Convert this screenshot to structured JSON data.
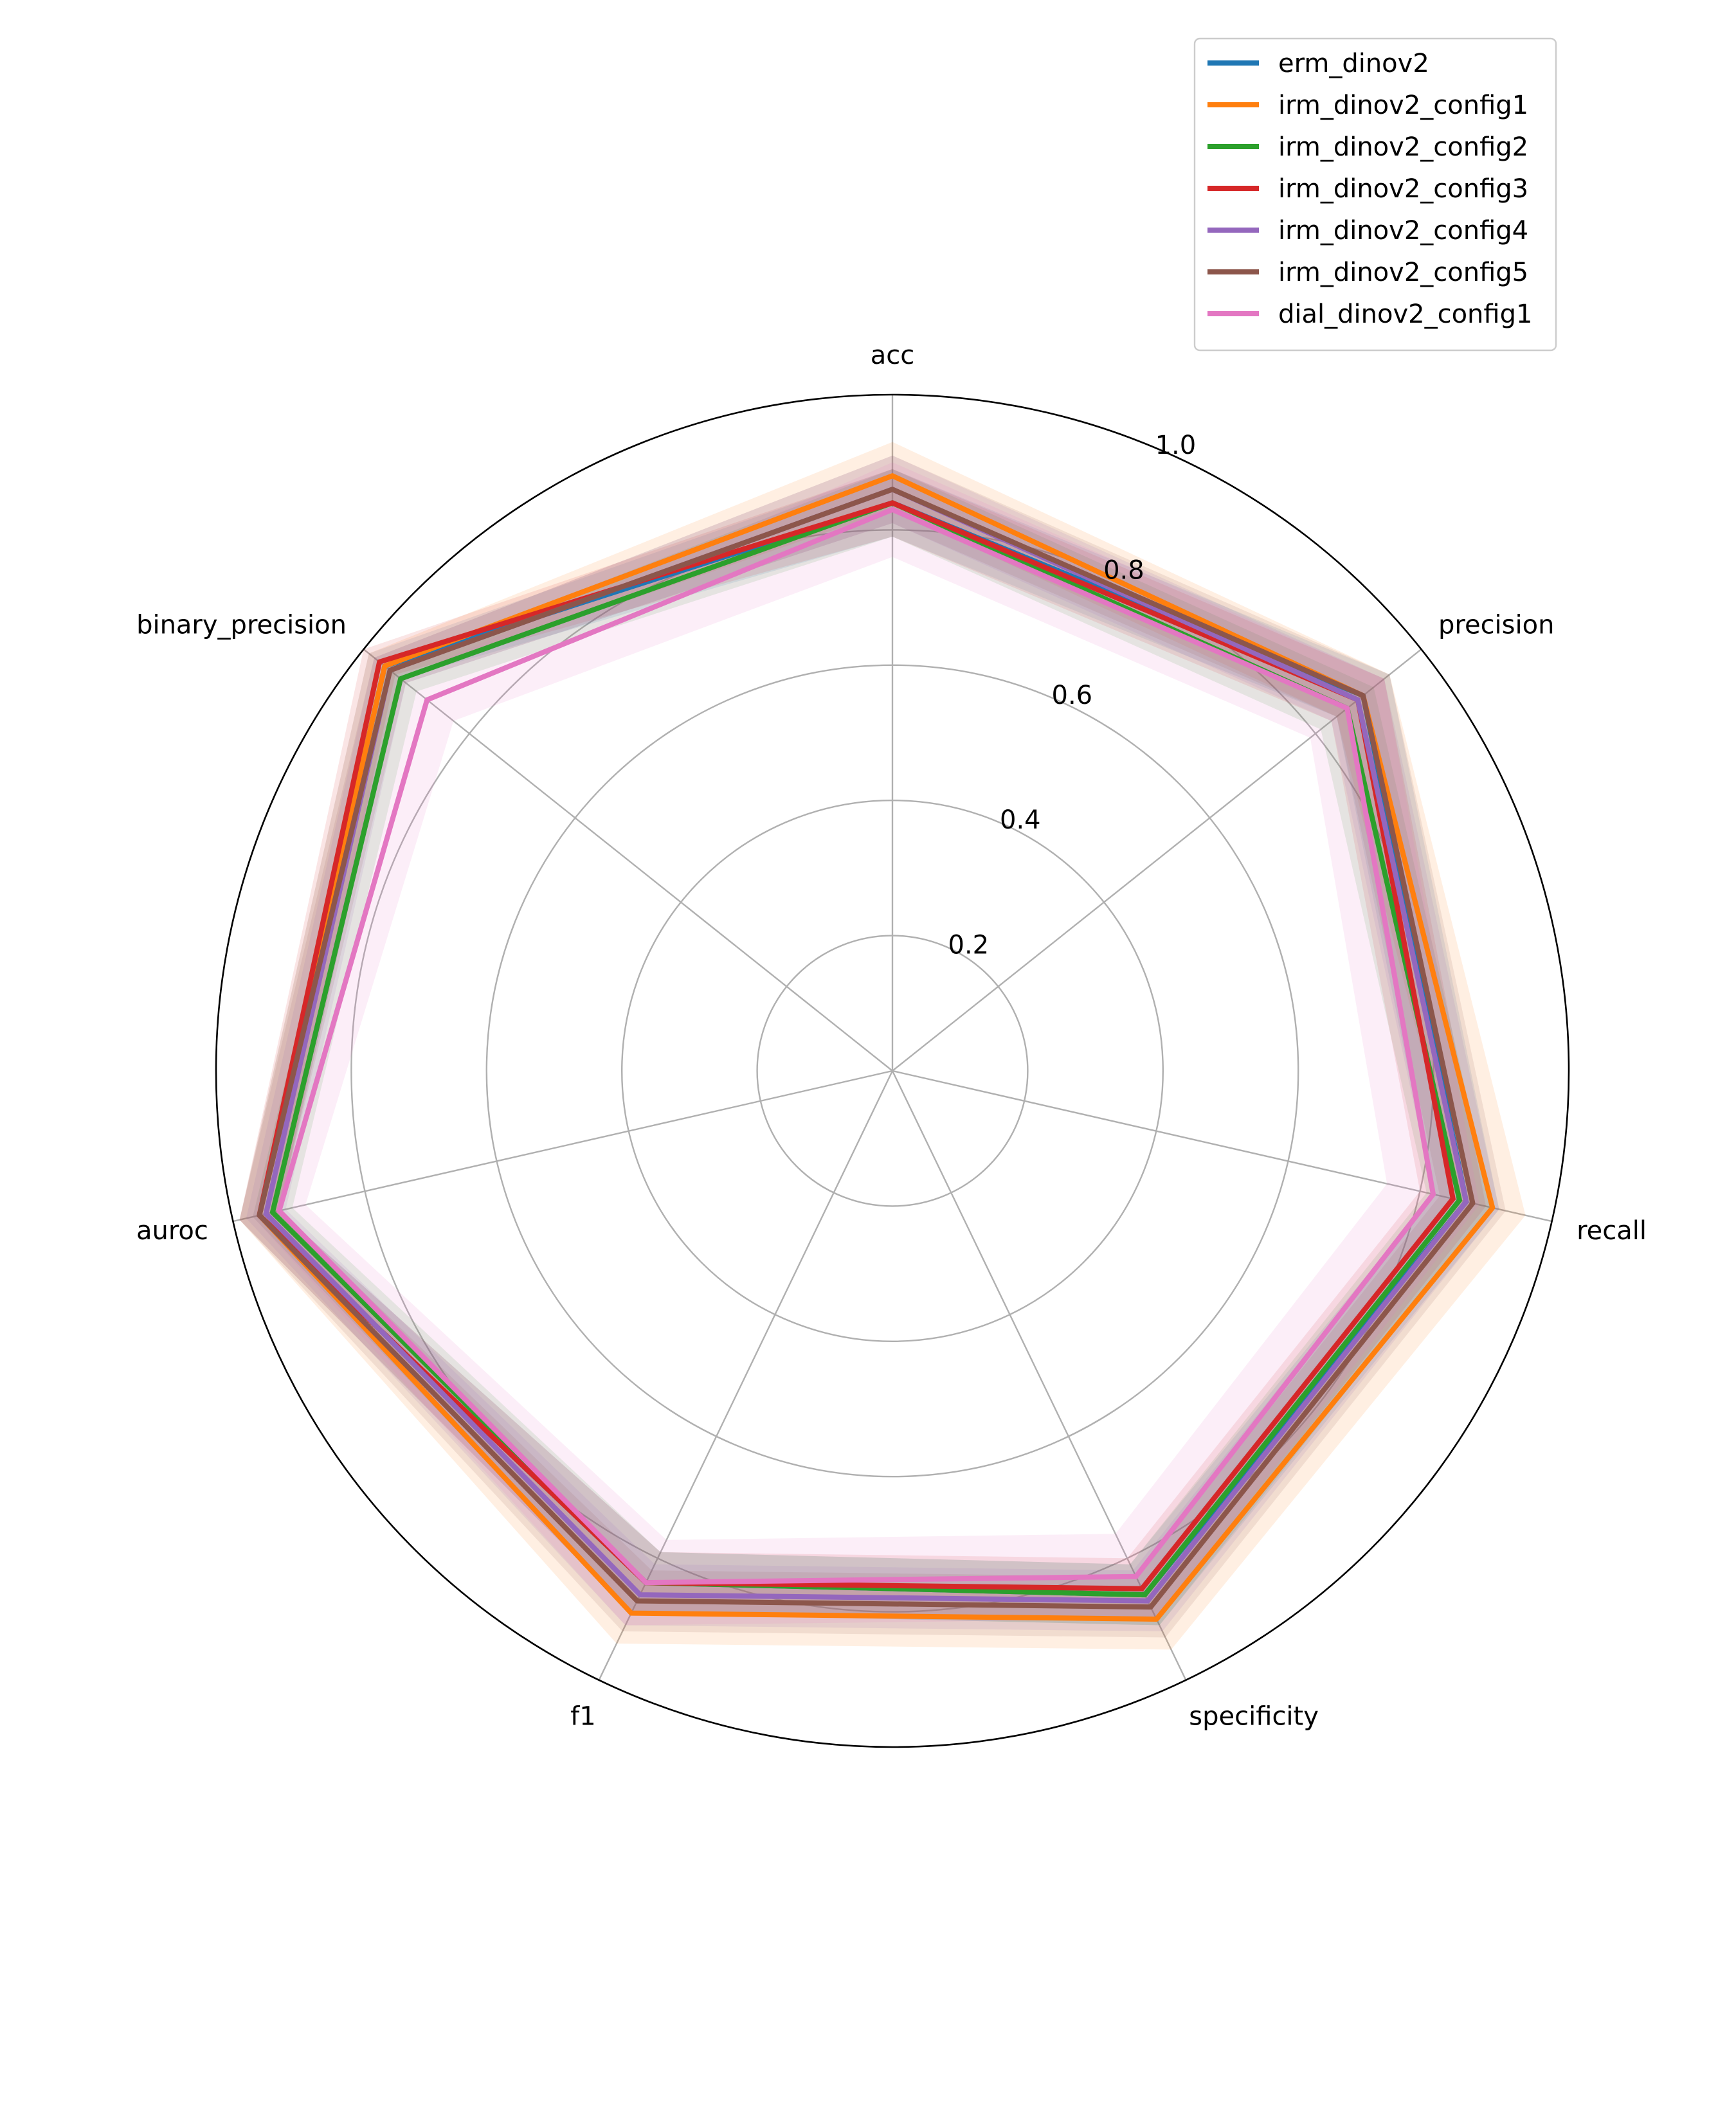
{
  "chart_data": {
    "type": "radar",
    "axes": [
      "acc",
      "precision",
      "recall",
      "specificity",
      "f1",
      "auroc",
      "binary_precision"
    ],
    "rlim": [
      0,
      1.0
    ],
    "r_ticks": [
      "0.2",
      "0.4",
      "0.6",
      "0.8",
      "1.0"
    ],
    "r_tick_values": [
      0.2,
      0.4,
      0.6,
      0.8,
      1.0
    ],
    "grid": true,
    "legend_position": "top-right",
    "series": [
      {
        "name": "erm_dinov2",
        "color": "#1f77b4",
        "values": [
          0.84,
          0.89,
          0.87,
          0.86,
          0.84,
          0.96,
          0.96
        ],
        "band": [
          0.05,
          0.05,
          0.05,
          0.05,
          0.05,
          0.03,
          0.03
        ]
      },
      {
        "name": "irm_dinov2_config1",
        "color": "#ff7f0e",
        "values": [
          0.88,
          0.89,
          0.91,
          0.9,
          0.89,
          0.96,
          0.96
        ],
        "band": [
          0.05,
          0.05,
          0.05,
          0.05,
          0.05,
          0.03,
          0.03
        ]
      },
      {
        "name": "irm_dinov2_config2",
        "color": "#2ca02c",
        "values": [
          0.84,
          0.86,
          0.86,
          0.86,
          0.84,
          0.94,
          0.93
        ],
        "band": [
          0.05,
          0.05,
          0.05,
          0.05,
          0.05,
          0.03,
          0.03
        ]
      },
      {
        "name": "irm_dinov2_config3",
        "color": "#d62728",
        "values": [
          0.84,
          0.88,
          0.85,
          0.85,
          0.84,
          0.96,
          0.97
        ],
        "band": [
          0.05,
          0.05,
          0.05,
          0.05,
          0.05,
          0.03,
          0.03
        ]
      },
      {
        "name": "irm_dinov2_config4",
        "color": "#9467bd",
        "values": [
          0.86,
          0.88,
          0.87,
          0.87,
          0.86,
          0.95,
          0.95
        ],
        "band": [
          0.05,
          0.05,
          0.05,
          0.05,
          0.05,
          0.03,
          0.03
        ]
      },
      {
        "name": "irm_dinov2_config5",
        "color": "#8c564b",
        "values": [
          0.86,
          0.89,
          0.88,
          0.88,
          0.87,
          0.96,
          0.95
        ],
        "band": [
          0.05,
          0.05,
          0.05,
          0.05,
          0.05,
          0.03,
          0.03
        ]
      },
      {
        "name": "dial_dinov2_config1",
        "color": "#e377c2",
        "values": [
          0.83,
          0.86,
          0.82,
          0.83,
          0.84,
          0.93,
          0.88
        ],
        "band": [
          0.07,
          0.07,
          0.07,
          0.07,
          0.07,
          0.04,
          0.05
        ]
      }
    ]
  }
}
